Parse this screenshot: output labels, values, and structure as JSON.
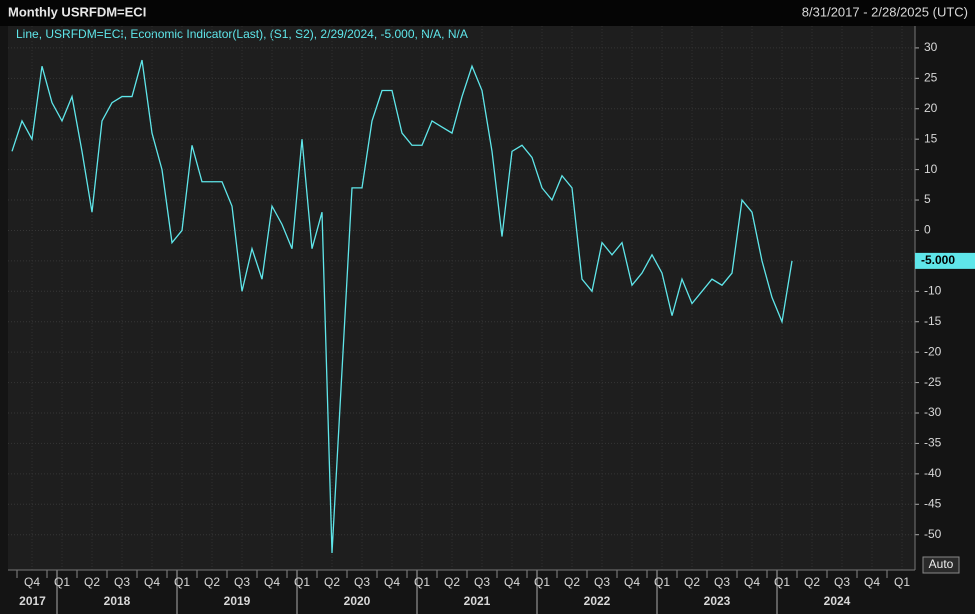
{
  "chart_data": {
    "type": "line",
    "title": "Monthly USRFDM=ECI",
    "date_range": "8/31/2017 - 2/28/2025 (UTC)",
    "legend_text": "Line, USRFDM=ECI, Economic Indicator(Last), (S1, S2), 2/29/2024, -5.000, N/A, N/A",
    "last_value_label": "-5.000",
    "auto_button": "Auto",
    "quarters": [
      "Q4",
      "Q1",
      "Q2",
      "Q3",
      "Q4",
      "Q1",
      "Q2",
      "Q3",
      "Q4",
      "Q1",
      "Q2",
      "Q3",
      "Q4",
      "Q1",
      "Q2",
      "Q3",
      "Q4",
      "Q1",
      "Q2",
      "Q3",
      "Q4",
      "Q1",
      "Q2",
      "Q3",
      "Q4",
      "Q1",
      "Q2",
      "Q3",
      "Q4",
      "Q1"
    ],
    "years": [
      "2017",
      "2018",
      "2019",
      "2020",
      "2021",
      "2022",
      "2023",
      "2024"
    ],
    "series": [
      {
        "name": "USRFDM=ECI",
        "color": "#5fe6ea",
        "values": [
          13,
          18,
          15,
          27,
          21,
          18,
          22,
          13,
          3,
          18,
          21,
          22,
          22,
          28,
          16,
          10,
          -2,
          0,
          14,
          8,
          8,
          8,
          4,
          -10,
          -3,
          -8,
          4,
          1,
          -3,
          15,
          -3,
          3,
          -53,
          -23,
          7,
          7,
          18,
          23,
          23,
          16,
          14,
          14,
          18,
          17,
          16,
          22,
          27,
          23,
          13,
          -1,
          13,
          14,
          12,
          7,
          5,
          9,
          7,
          -8,
          -10,
          -2,
          -4,
          -2,
          -9,
          -7,
          -4,
          -7,
          -14,
          -8,
          -12,
          -10,
          -8,
          -9,
          -7,
          5,
          3,
          -5,
          -11,
          -15,
          -5
        ]
      }
    ],
    "ylim": [
      -55.8,
      33.6
    ],
    "yticks": [
      -50,
      -45,
      -40,
      -35,
      -30,
      -25,
      -20,
      -15,
      -10,
      -5,
      0,
      5,
      10,
      15,
      20,
      25,
      30
    ],
    "grid": true
  }
}
